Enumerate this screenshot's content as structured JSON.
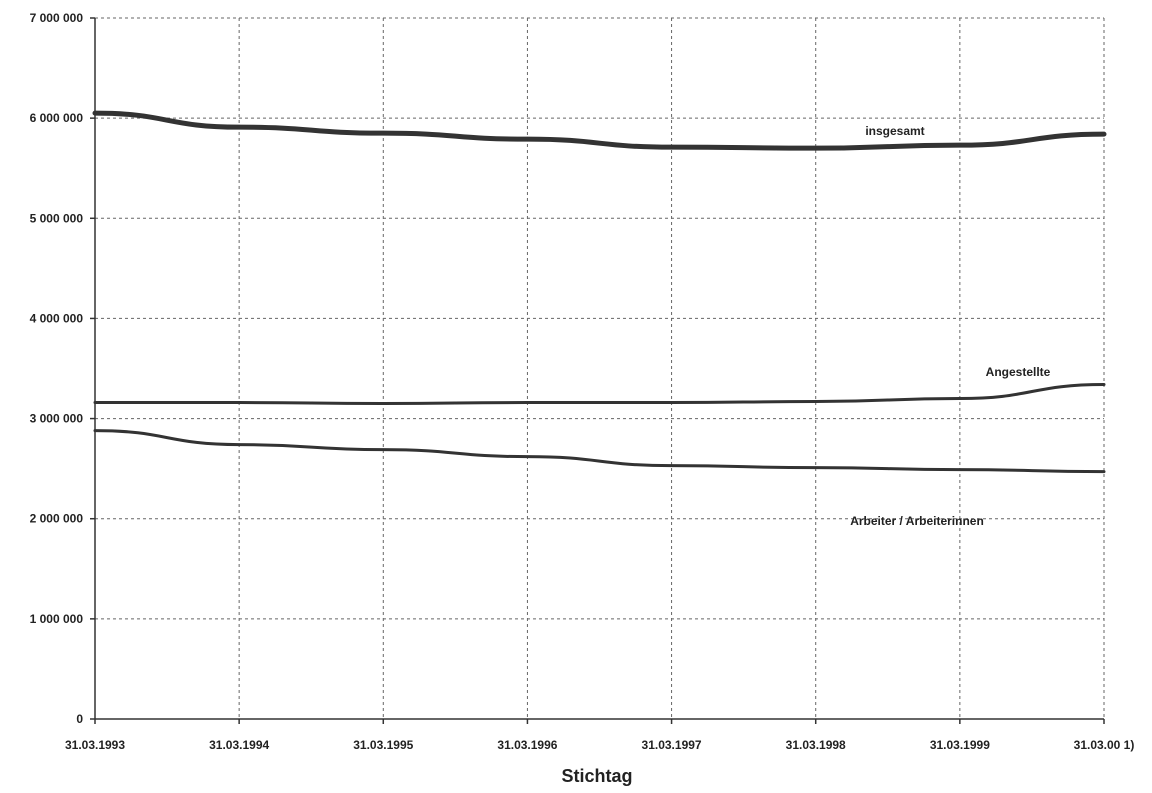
{
  "chart_data": {
    "type": "line",
    "title": "",
    "xlabel": "Stichtag",
    "ylabel": "",
    "categories": [
      "31.03.1993",
      "31.03.1994",
      "31.03.1995",
      "31.03.1996",
      "31.03.1997",
      "31.03.1998",
      "31.03.1999",
      "31.03.00 1)"
    ],
    "y_tick_labels": [
      "0",
      "1 000 000",
      "2 000 000",
      "3 000 000",
      "4 000 000",
      "5 000 000",
      "6 000 000",
      "7 000 000"
    ],
    "ylim": [
      0,
      7000000
    ],
    "grid": true,
    "series": [
      {
        "name": "insgesamt",
        "values": [
          6050000,
          5910000,
          5850000,
          5790000,
          5710000,
          5700000,
          5730000,
          5840000
        ],
        "color": "#333333",
        "emphasis": "thick"
      },
      {
        "name": "Angestellte",
        "values": [
          3160000,
          3160000,
          3150000,
          3160000,
          3160000,
          3170000,
          3200000,
          3340000
        ],
        "color": "#333333",
        "emphasis": "normal"
      },
      {
        "name": "Arbeiter / Arbeiterinnen",
        "values": [
          2880000,
          2740000,
          2690000,
          2620000,
          2530000,
          2510000,
          2490000,
          2470000
        ],
        "color": "#333333",
        "emphasis": "normal"
      }
    ]
  }
}
